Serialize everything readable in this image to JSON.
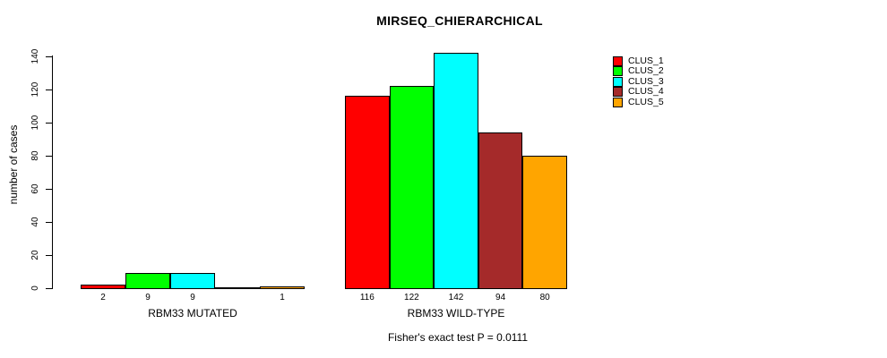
{
  "chart_data": {
    "type": "bar",
    "title": "MIRSEQ_CHIERARCHICAL",
    "xlabel": "",
    "ylabel": "number of cases",
    "ylim": [
      0,
      140
    ],
    "yticks": [
      0,
      20,
      40,
      60,
      80,
      100,
      120,
      140
    ],
    "grid": false,
    "legend_position": "right",
    "legend": [
      {
        "name": "CLUS_1",
        "color": "#FF0000"
      },
      {
        "name": "CLUS_2",
        "color": "#00FF00"
      },
      {
        "name": "CLUS_3",
        "color": "#00FFFF"
      },
      {
        "name": "CLUS_4",
        "color": "#A52A2A"
      },
      {
        "name": "CLUS_5",
        "color": "#FFA500"
      }
    ],
    "series_colors": [
      "#FF0000",
      "#00FF00",
      "#00FFFF",
      "#A52A2A",
      "#FFA500"
    ],
    "groups": [
      {
        "label": "RBM33 MUTATED",
        "values": [
          2,
          9,
          9,
          0,
          1
        ],
        "bar_labels": [
          "2",
          "9",
          "9",
          "",
          "1"
        ]
      },
      {
        "label": "RBM33 WILD-TYPE",
        "values": [
          116,
          122,
          142,
          94,
          80
        ],
        "bar_labels": [
          "116",
          "122",
          "142",
          "94",
          "80"
        ]
      }
    ],
    "annotation": "Fisher's exact test P = 0.0111"
  }
}
